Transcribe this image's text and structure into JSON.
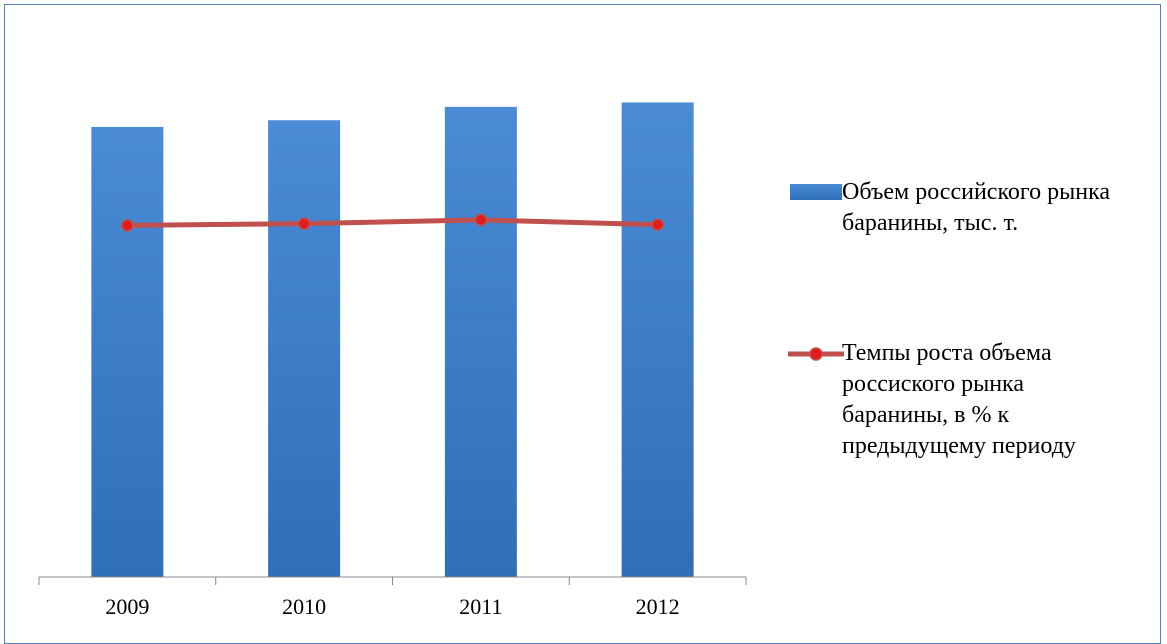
{
  "chart_data": {
    "type": "bar",
    "categories": [
      "2009",
      "2010",
      "2011",
      "2012"
    ],
    "series": [
      {
        "name": "Объем российского рынка баранины, тыс. т.",
        "kind": "bar",
        "values": [
          202,
          205,
          211,
          213
        ]
      },
      {
        "name": "Темпы роста объема россиского рынка баранины, в % к предыдущему периоду",
        "kind": "line",
        "values": [
          101.0,
          101.5,
          102.6,
          101.2
        ]
      }
    ],
    "ylim": [
      0,
      250
    ],
    "xlabel": "",
    "ylabel": "",
    "grid": false,
    "legend_position": "right",
    "colors": {
      "bar_top": "#4a8bd6",
      "bar_bottom": "#2f6fb8",
      "line": "#c0504d",
      "marker_fill": "#e31b1b",
      "axis": "#888888",
      "frame": "#4f81bd"
    }
  }
}
